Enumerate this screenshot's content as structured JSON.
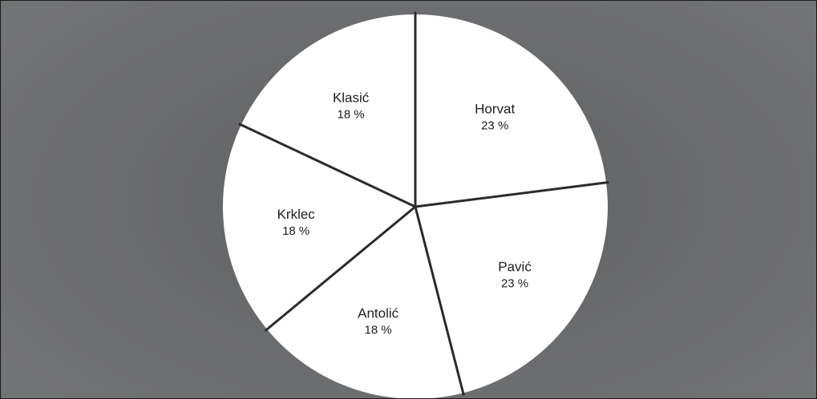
{
  "chart_data": {
    "type": "pie",
    "title": "",
    "start_angle_deg": 0,
    "direction": "clockwise",
    "slices": [
      {
        "label": "Horvat",
        "value": 23,
        "value_label": "23 %"
      },
      {
        "label": "Pavić",
        "value": 23,
        "value_label": "23 %"
      },
      {
        "label": "Antolić",
        "value": 18,
        "value_label": "18 %"
      },
      {
        "label": "Krklec",
        "value": 18,
        "value_label": "18 %"
      },
      {
        "label": "Klasić",
        "value": 18,
        "value_label": "18 %"
      }
    ],
    "colors": {
      "slice_fill": "#ffffff",
      "divider": "#2b2b2d",
      "background": "#6a6b6d"
    },
    "legend": "none"
  }
}
